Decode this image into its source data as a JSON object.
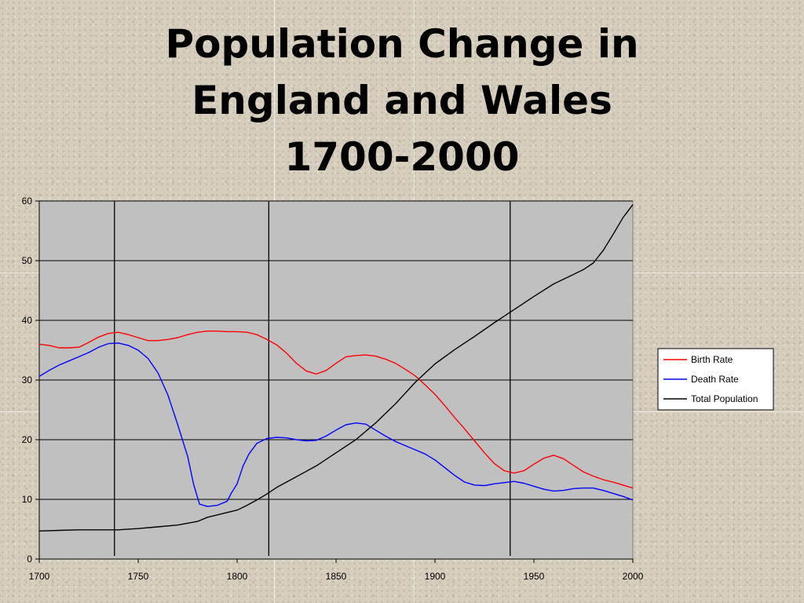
{
  "slide": {
    "title_lines": [
      "Population Change in",
      "England and Wales",
      "1700-2000"
    ]
  },
  "chart_data": {
    "type": "line",
    "title": "Population Change in England and Wales 1700-2000",
    "xlabel": "",
    "ylabel": "",
    "xlim": [
      1700,
      2000
    ],
    "ylim": [
      0,
      60
    ],
    "x_ticks": [
      1700,
      1750,
      1800,
      1850,
      1900,
      1950,
      2000
    ],
    "y_ticks": [
      0,
      10,
      20,
      30,
      40,
      50,
      60
    ],
    "grid": "horizontal",
    "plot_background": "#c0c0c0",
    "legend_position": "right",
    "vertical_markers": [
      1738,
      1816,
      1938
    ],
    "series": [
      {
        "name": "Birth Rate",
        "color": "#ff0000",
        "points": [
          [
            1700,
            36
          ],
          [
            1705,
            35.8
          ],
          [
            1710,
            35.4
          ],
          [
            1715,
            35.4
          ],
          [
            1720,
            35.5
          ],
          [
            1725,
            36.3
          ],
          [
            1730,
            37.2
          ],
          [
            1735,
            37.8
          ],
          [
            1740,
            38
          ],
          [
            1745,
            37.6
          ],
          [
            1750,
            37.1
          ],
          [
            1755,
            36.6
          ],
          [
            1760,
            36.6
          ],
          [
            1765,
            36.8
          ],
          [
            1770,
            37.1
          ],
          [
            1775,
            37.6
          ],
          [
            1780,
            38
          ],
          [
            1785,
            38.2
          ],
          [
            1790,
            38.2
          ],
          [
            1795,
            38.1
          ],
          [
            1800,
            38.1
          ],
          [
            1805,
            38
          ],
          [
            1810,
            37.6
          ],
          [
            1815,
            36.8
          ],
          [
            1820,
            35.9
          ],
          [
            1825,
            34.5
          ],
          [
            1830,
            32.8
          ],
          [
            1835,
            31.5
          ],
          [
            1840,
            31
          ],
          [
            1845,
            31.6
          ],
          [
            1850,
            32.8
          ],
          [
            1855,
            33.9
          ],
          [
            1860,
            34.1
          ],
          [
            1865,
            34.2
          ],
          [
            1870,
            34
          ],
          [
            1875,
            33.5
          ],
          [
            1880,
            32.8
          ],
          [
            1885,
            31.8
          ],
          [
            1890,
            30.7
          ],
          [
            1895,
            29.2
          ],
          [
            1900,
            27.6
          ],
          [
            1905,
            25.7
          ],
          [
            1910,
            23.7
          ],
          [
            1915,
            21.8
          ],
          [
            1920,
            19.8
          ],
          [
            1925,
            17.8
          ],
          [
            1930,
            16
          ],
          [
            1935,
            14.8
          ],
          [
            1940,
            14.4
          ],
          [
            1945,
            14.8
          ],
          [
            1950,
            15.9
          ],
          [
            1955,
            16.9
          ],
          [
            1960,
            17.4
          ],
          [
            1965,
            16.8
          ],
          [
            1970,
            15.7
          ],
          [
            1975,
            14.6
          ],
          [
            1980,
            13.9
          ],
          [
            1985,
            13.3
          ],
          [
            1990,
            12.9
          ],
          [
            1995,
            12.4
          ],
          [
            2000,
            11.9
          ]
        ]
      },
      {
        "name": "Death Rate",
        "color": "#0000ff",
        "points": [
          [
            1700,
            30.6
          ],
          [
            1705,
            31.6
          ],
          [
            1710,
            32.5
          ],
          [
            1715,
            33.2
          ],
          [
            1720,
            33.9
          ],
          [
            1725,
            34.6
          ],
          [
            1730,
            35.5
          ],
          [
            1735,
            36.1
          ],
          [
            1740,
            36.2
          ],
          [
            1745,
            35.8
          ],
          [
            1750,
            35.0
          ],
          [
            1755,
            33.6
          ],
          [
            1760,
            31.2
          ],
          [
            1765,
            27.5
          ],
          [
            1770,
            22.5
          ],
          [
            1775,
            17.2
          ],
          [
            1778,
            12.5
          ],
          [
            1781,
            9.2
          ],
          [
            1785,
            8.8
          ],
          [
            1790,
            9
          ],
          [
            1795,
            9.7
          ],
          [
            1797,
            11
          ],
          [
            1800,
            12.6
          ],
          [
            1803,
            15.6
          ],
          [
            1806,
            17.6
          ],
          [
            1810,
            19.4
          ],
          [
            1815,
            20.2
          ],
          [
            1820,
            20.4
          ],
          [
            1825,
            20.3
          ],
          [
            1830,
            20
          ],
          [
            1835,
            19.8
          ],
          [
            1840,
            19.9
          ],
          [
            1845,
            20.6
          ],
          [
            1850,
            21.6
          ],
          [
            1855,
            22.5
          ],
          [
            1860,
            22.8
          ],
          [
            1865,
            22.6
          ],
          [
            1870,
            21.6
          ],
          [
            1875,
            20.6
          ],
          [
            1880,
            19.7
          ],
          [
            1885,
            19
          ],
          [
            1890,
            18.3
          ],
          [
            1895,
            17.6
          ],
          [
            1900,
            16.6
          ],
          [
            1905,
            15.3
          ],
          [
            1910,
            14
          ],
          [
            1915,
            12.9
          ],
          [
            1920,
            12.4
          ],
          [
            1925,
            12.3
          ],
          [
            1930,
            12.6
          ],
          [
            1935,
            12.8
          ],
          [
            1940,
            13
          ],
          [
            1945,
            12.7
          ],
          [
            1950,
            12.2
          ],
          [
            1955,
            11.7
          ],
          [
            1960,
            11.4
          ],
          [
            1965,
            11.5
          ],
          [
            1970,
            11.8
          ],
          [
            1975,
            11.9
          ],
          [
            1980,
            11.9
          ],
          [
            1985,
            11.5
          ],
          [
            1990,
            11
          ],
          [
            1995,
            10.5
          ],
          [
            2000,
            9.9
          ]
        ]
      },
      {
        "name": "Total Population",
        "color": "#000000",
        "points": [
          [
            1700,
            4.7
          ],
          [
            1710,
            4.8
          ],
          [
            1720,
            4.9
          ],
          [
            1730,
            4.9
          ],
          [
            1740,
            4.9
          ],
          [
            1750,
            5.1
          ],
          [
            1760,
            5.4
          ],
          [
            1770,
            5.7
          ],
          [
            1780,
            6.3
          ],
          [
            1785,
            7
          ],
          [
            1790,
            7.4
          ],
          [
            1795,
            7.8
          ],
          [
            1800,
            8.2
          ],
          [
            1805,
            9
          ],
          [
            1810,
            9.9
          ],
          [
            1815,
            10.9
          ],
          [
            1820,
            12
          ],
          [
            1830,
            13.8
          ],
          [
            1840,
            15.6
          ],
          [
            1850,
            17.8
          ],
          [
            1860,
            20
          ],
          [
            1870,
            22.8
          ],
          [
            1880,
            26
          ],
          [
            1890,
            29.6
          ],
          [
            1900,
            32.7
          ],
          [
            1910,
            35.1
          ],
          [
            1920,
            37.3
          ],
          [
            1930,
            39.6
          ],
          [
            1940,
            41.8
          ],
          [
            1950,
            44
          ],
          [
            1960,
            46.1
          ],
          [
            1970,
            47.7
          ],
          [
            1975,
            48.5
          ],
          [
            1980,
            49.6
          ],
          [
            1985,
            51.7
          ],
          [
            1990,
            54.4
          ],
          [
            1995,
            57.2
          ],
          [
            2000,
            59.4
          ]
        ]
      }
    ]
  }
}
